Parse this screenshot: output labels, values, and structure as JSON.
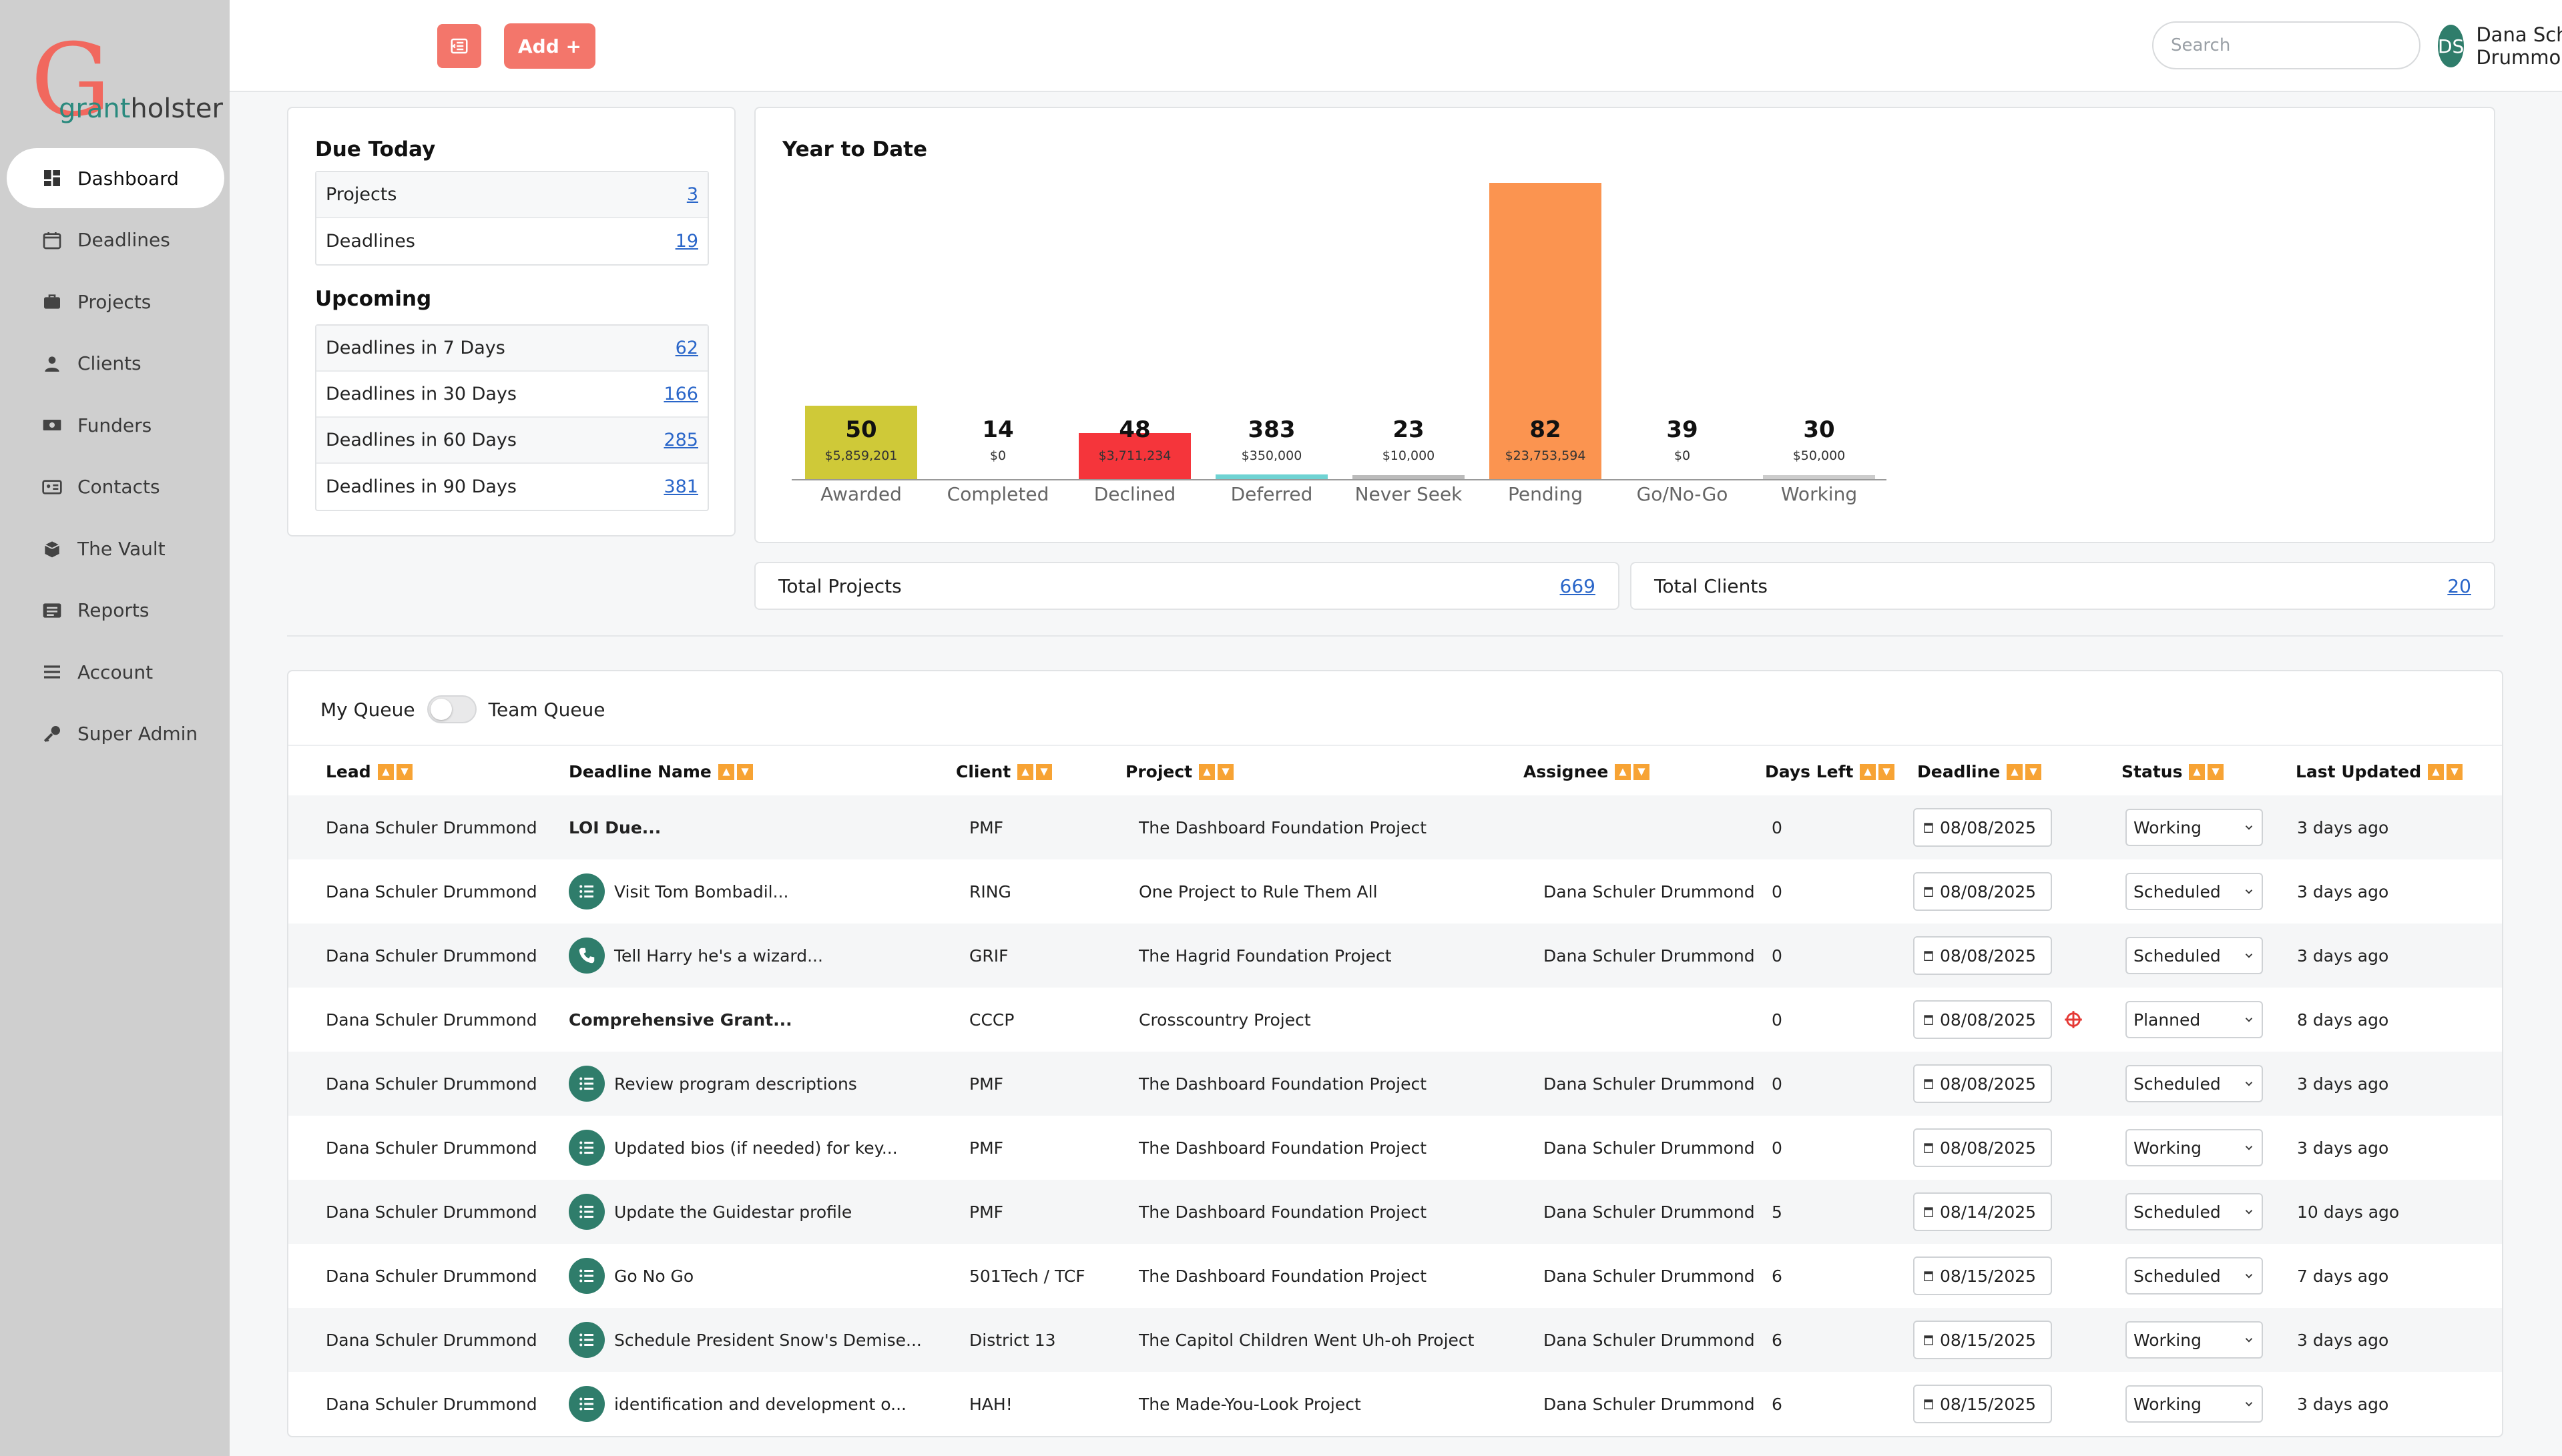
{
  "brand": {
    "logo_letter": "G",
    "logo_grant": "grant",
    "logo_holster": "holster",
    "accent": "#f3766b",
    "teal": "#2f7d6b"
  },
  "sidebar": {
    "items": [
      {
        "label": "Dashboard",
        "icon": "dashboard-icon",
        "active": true
      },
      {
        "label": "Deadlines",
        "icon": "calendar-icon"
      },
      {
        "label": "Projects",
        "icon": "briefcase-icon"
      },
      {
        "label": "Clients",
        "icon": "person-icon"
      },
      {
        "label": "Funders",
        "icon": "money-icon"
      },
      {
        "label": "Contacts",
        "icon": "contact-card-icon"
      },
      {
        "label": "The Vault",
        "icon": "vault-icon"
      },
      {
        "label": "Reports",
        "icon": "reports-icon"
      },
      {
        "label": "Account",
        "icon": "menu-icon"
      },
      {
        "label": "Super Admin",
        "icon": "key-icon"
      }
    ]
  },
  "topbar": {
    "add_label": "Add +",
    "search_placeholder": "Search",
    "user_initials": "DS",
    "user_name": "Dana Schuler Drummond"
  },
  "due_today": {
    "title": "Due Today",
    "rows": [
      {
        "label": "Projects",
        "value": "3"
      },
      {
        "label": "Deadlines",
        "value": "19"
      }
    ]
  },
  "upcoming": {
    "title": "Upcoming",
    "rows": [
      {
        "label": "Deadlines in 7 Days",
        "value": "62"
      },
      {
        "label": "Deadlines in 30 Days",
        "value": "166"
      },
      {
        "label": "Deadlines in 60 Days",
        "value": "285"
      },
      {
        "label": "Deadlines in 90 Days",
        "value": "381"
      }
    ]
  },
  "chart_data": {
    "type": "bar",
    "title": "Year to Date",
    "categories": [
      "Awarded",
      "Completed",
      "Declined",
      "Deferred",
      "Never Seek",
      "Pending",
      "Go/No-Go",
      "Working"
    ],
    "counts": [
      "50",
      "14",
      "48",
      "383",
      "23",
      "82",
      "39",
      "30"
    ],
    "amounts": [
      "$5,859,201",
      "$0",
      "$3,711,234",
      "$350,000",
      "$10,000",
      "$23,753,594",
      "$0",
      "$50,000"
    ],
    "values": [
      5859201,
      0,
      3711234,
      350000,
      10000,
      23753594,
      0,
      50000
    ],
    "colors": [
      "#cfc938",
      "#cccccc",
      "#f5353b",
      "#6fd3d3",
      "#bbbbbb",
      "#fb9450",
      "#cccccc",
      "#cccccc"
    ],
    "ylim": [
      0,
      23753594
    ]
  },
  "totals": {
    "projects_label": "Total Projects",
    "projects_value": "669",
    "clients_label": "Total Clients",
    "clients_value": "20"
  },
  "queue": {
    "my_label": "My Queue",
    "team_label": "Team Queue",
    "columns": [
      "Lead",
      "Deadline Name",
      "Client",
      "Project",
      "Assignee",
      "Days Left",
      "Deadline",
      "Status",
      "Last Updated"
    ],
    "rows": [
      {
        "lead": "Dana Schuler Drummond",
        "name": "LOI Due...",
        "icon": "",
        "bold": true,
        "client": "PMF",
        "project": "The Dashboard Foundation Project",
        "assignee": "",
        "days": "0",
        "deadline": "08/08/2025",
        "alert": false,
        "status": "Working",
        "updated": "3 days ago"
      },
      {
        "lead": "Dana Schuler Drummond",
        "name": "Visit Tom Bombadil...",
        "icon": "checklist-icon",
        "bold": false,
        "client": "RING",
        "project": "One Project to Rule Them All",
        "assignee": "Dana Schuler Drummond",
        "days": "0",
        "deadline": "08/08/2025",
        "alert": false,
        "status": "Scheduled",
        "updated": "3 days ago"
      },
      {
        "lead": "Dana Schuler Drummond",
        "name": "Tell Harry he's a wizard...",
        "icon": "phone-icon",
        "bold": false,
        "client": "GRIF",
        "project": "The Hagrid Foundation Project",
        "assignee": "Dana Schuler Drummond",
        "days": "0",
        "deadline": "08/08/2025",
        "alert": false,
        "status": "Scheduled",
        "updated": "3 days ago"
      },
      {
        "lead": "Dana Schuler Drummond",
        "name": "Comprehensive Grant...",
        "icon": "",
        "bold": true,
        "client": "CCCP",
        "project": "Crosscountry Project",
        "assignee": "",
        "days": "0",
        "deadline": "08/08/2025",
        "alert": true,
        "status": "Planned",
        "updated": "8 days ago"
      },
      {
        "lead": "Dana Schuler Drummond",
        "name": "Review program descriptions",
        "icon": "checklist-icon",
        "bold": false,
        "client": "PMF",
        "project": "The Dashboard Foundation Project",
        "assignee": "Dana Schuler Drummond",
        "days": "0",
        "deadline": "08/08/2025",
        "alert": false,
        "status": "Scheduled",
        "updated": "3 days ago"
      },
      {
        "lead": "Dana Schuler Drummond",
        "name": "Updated bios (if needed) for key...",
        "icon": "checklist-icon",
        "bold": false,
        "client": "PMF",
        "project": "The Dashboard Foundation Project",
        "assignee": "Dana Schuler Drummond",
        "days": "0",
        "deadline": "08/08/2025",
        "alert": false,
        "status": "Working",
        "updated": "3 days ago"
      },
      {
        "lead": "Dana Schuler Drummond",
        "name": "Update the Guidestar profile",
        "icon": "checklist-icon",
        "bold": false,
        "client": "PMF",
        "project": "The Dashboard Foundation Project",
        "assignee": "Dana Schuler Drummond",
        "days": "5",
        "deadline": "08/14/2025",
        "alert": false,
        "status": "Scheduled",
        "updated": "10 days ago"
      },
      {
        "lead": "Dana Schuler Drummond",
        "name": "Go No Go",
        "icon": "checklist-icon",
        "bold": false,
        "client": "501Tech / TCF",
        "project": "The Dashboard Foundation Project",
        "assignee": "Dana Schuler Drummond",
        "days": "6",
        "deadline": "08/15/2025",
        "alert": false,
        "status": "Scheduled",
        "updated": "7 days ago"
      },
      {
        "lead": "Dana Schuler Drummond",
        "name": "Schedule President Snow's Demise...",
        "icon": "checklist-icon",
        "bold": false,
        "client": "District 13",
        "project": "The Capitol Children Went Uh-oh Project",
        "assignee": "Dana Schuler Drummond",
        "days": "6",
        "deadline": "08/15/2025",
        "alert": false,
        "status": "Working",
        "updated": "3 days ago"
      },
      {
        "lead": "Dana Schuler Drummond",
        "name": "identification and development o...",
        "icon": "checklist-icon",
        "bold": false,
        "client": "HAH!",
        "project": "The Made-You-Look Project",
        "assignee": "Dana Schuler Drummond",
        "days": "6",
        "deadline": "08/15/2025",
        "alert": false,
        "status": "Working",
        "updated": "3 days ago"
      }
    ]
  }
}
